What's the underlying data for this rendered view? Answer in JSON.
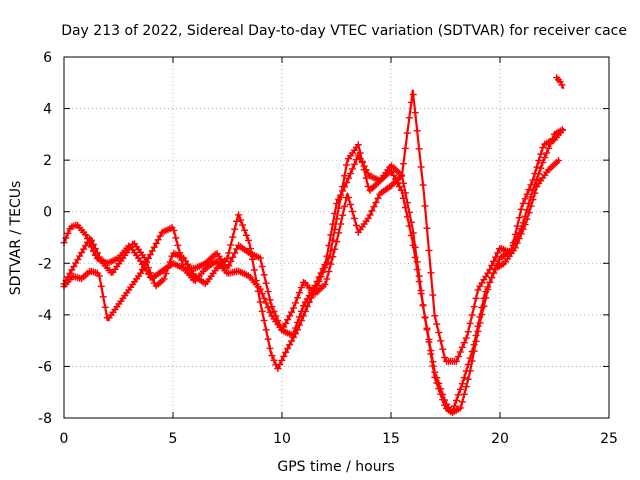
{
  "chart_data": {
    "type": "scatter",
    "title": "Day 213 of 2022, Sidereal Day-to-day VTEC variation (SDTVAR) for receiver cace",
    "xlabel": "GPS time / hours",
    "ylabel": "SDTVAR / TECUs",
    "xlim": [
      0,
      25
    ],
    "ylim": [
      -8,
      6
    ],
    "xticks": [
      0,
      5,
      10,
      15,
      20,
      25
    ],
    "yticks": [
      -8,
      -6,
      -4,
      -2,
      0,
      2,
      4,
      6
    ],
    "grid": true,
    "color": "#ff0000",
    "marker": "plus",
    "series": [
      {
        "x": [
          0.0,
          0.3,
          0.6,
          1.0,
          1.5,
          2.0,
          2.5,
          3.0,
          3.5,
          4.0,
          4.5,
          5.0,
          5.5,
          6.0,
          6.5,
          7.0,
          7.5,
          8.0,
          8.5,
          9.0,
          9.5,
          10.0,
          10.5,
          11.0,
          11.5,
          12.0,
          12.5,
          13.0,
          13.5,
          14.0,
          14.5,
          15.0,
          15.5,
          16.0,
          16.5,
          17.0,
          17.5,
          17.8,
          18.2,
          18.6,
          19.0,
          19.5,
          20.0,
          20.5,
          21.0,
          21.5,
          22.0,
          22.5,
          22.9
        ],
        "y": [
          -1.2,
          -0.6,
          -0.5,
          -0.9,
          -1.8,
          -2.0,
          -1.8,
          -1.3,
          -1.9,
          -2.6,
          -2.3,
          -2.0,
          -2.2,
          -2.2,
          -2.0,
          -1.6,
          -2.2,
          -1.3,
          -1.6,
          -1.8,
          -3.6,
          -4.6,
          -4.8,
          -3.6,
          -2.9,
          -2.0,
          0.3,
          1.2,
          2.2,
          1.4,
          1.2,
          1.8,
          1.4,
          -0.7,
          -3.8,
          -6.2,
          -7.4,
          -7.8,
          -7.6,
          -6.3,
          -4.6,
          -2.8,
          -1.8,
          -1.5,
          -0.6,
          0.8,
          2.0,
          3.0,
          3.2
        ]
      },
      {
        "x": [
          0.0,
          0.4,
          0.8,
          1.2,
          1.7,
          2.2,
          2.7,
          3.2,
          3.7,
          4.2,
          4.6,
          5.0,
          5.5,
          6.0,
          6.5,
          7.0,
          7.5,
          8.0,
          8.5,
          9.0,
          9.5,
          9.8,
          10.2,
          10.7,
          11.2,
          11.7,
          12.2,
          12.7,
          13.0,
          13.5,
          14.0,
          14.5,
          15.0,
          15.5,
          16.0,
          16.5,
          17.0,
          17.5,
          17.8,
          18.3,
          18.8,
          19.3,
          19.8,
          20.2,
          20.7,
          21.2,
          21.7,
          22.2,
          22.7
        ],
        "y": [
          -2.8,
          -2.2,
          -1.6,
          -1.0,
          -1.9,
          -2.4,
          -1.8,
          -1.2,
          -1.8,
          -2.9,
          -2.6,
          -1.6,
          -1.8,
          -2.5,
          -2.8,
          -2.2,
          -1.8,
          -0.1,
          -1.2,
          -3.5,
          -5.5,
          -6.1,
          -5.4,
          -4.6,
          -3.6,
          -2.7,
          -1.7,
          0.6,
          2.0,
          2.6,
          0.8,
          1.2,
          1.6,
          0.8,
          -1.2,
          -3.8,
          -6.4,
          -7.6,
          -7.8,
          -6.6,
          -5.2,
          -3.2,
          -2.2,
          -2.0,
          -1.4,
          -0.4,
          1.0,
          1.6,
          2.0
        ]
      },
      {
        "x": [
          0.0,
          0.4,
          0.8,
          1.2,
          1.6,
          2.0,
          2.5,
          3.0,
          3.5,
          4.0,
          4.5,
          5.0,
          5.5,
          6.0,
          6.5,
          7.0,
          7.5,
          8.0,
          8.5,
          9.0,
          9.5,
          10.0,
          10.5,
          11.0,
          11.5,
          12.0,
          12.5,
          13.0,
          13.5,
          14.0,
          14.5,
          15.0,
          15.5,
          16.0,
          16.5,
          17.0,
          17.5,
          18.0,
          18.5,
          19.0,
          19.5,
          20.0,
          20.5,
          21.0,
          21.5,
          22.0,
          22.5,
          22.9
        ],
        "y": [
          -2.9,
          -2.5,
          -2.6,
          -2.3,
          -2.4,
          -4.2,
          -3.6,
          -3.0,
          -2.4,
          -1.6,
          -0.8,
          -0.6,
          -2.2,
          -2.7,
          -2.2,
          -1.9,
          -2.4,
          -2.3,
          -2.5,
          -3.0,
          -4.0,
          -4.6,
          -3.8,
          -2.7,
          -3.2,
          -2.8,
          -1.2,
          0.7,
          -0.8,
          -0.2,
          0.7,
          1.0,
          1.4,
          4.7,
          0.8,
          -4.0,
          -5.8,
          -5.8,
          -4.8,
          -3.0,
          -2.3,
          -1.4,
          -1.6,
          0.2,
          1.2,
          2.6,
          2.8,
          3.2
        ]
      },
      {
        "x": [
          22.6,
          22.7,
          22.8,
          22.9
        ],
        "y": [
          5.2,
          5.1,
          5.0,
          4.8
        ]
      }
    ]
  }
}
